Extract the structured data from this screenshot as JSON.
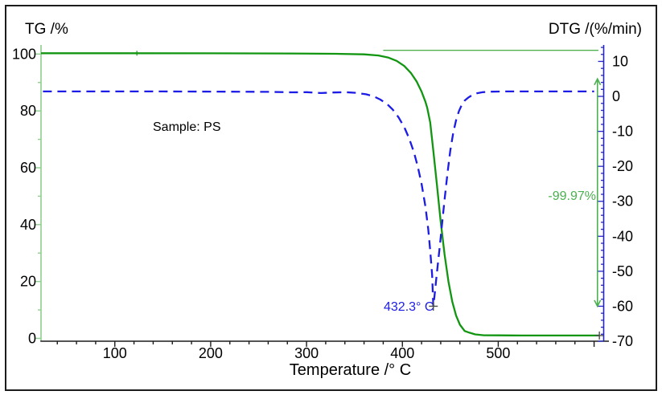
{
  "figure": {
    "tg_axis_title": "TG /%",
    "dtg_axis_title": "DTG /(%/min)",
    "x_axis_title": "Temperature /° C",
    "sample_label": "Sample: PS",
    "peak_temperature_label": "432.3° C",
    "mass_loss_label": "-99.97%"
  },
  "colors": {
    "tg_curve": "#129612",
    "tg_axis": "#8fcf8f",
    "dtg_curve": "#1c1ce6",
    "dtg_axis": "#2424cc",
    "x_axis": "#1c1c1c",
    "tick_label": "#000000",
    "arrow": "#4ab050",
    "marker": "#4d4d4d",
    "start_marker": "#129612",
    "baseline": "#129612"
  },
  "chart_data": {
    "type": "line",
    "title": "",
    "xlabel": "Temperature /° C",
    "grid": false,
    "legend": "none",
    "x_axis": {
      "range": [
        23,
        610
      ],
      "major_ticks": [
        100,
        200,
        300,
        400,
        500
      ],
      "minor_step": 20
    },
    "left_axis": {
      "label": "TG /%",
      "range": [
        -1,
        103.2
      ],
      "major_ticks": [
        0,
        20,
        40,
        60,
        80,
        100
      ],
      "minor_step": 10
    },
    "right_axis": {
      "label": "DTG /(%/min)",
      "range": [
        -70,
        14.7
      ],
      "major_ticks": [
        10,
        0,
        -10,
        -20,
        -30,
        -40,
        -50,
        -60,
        -70
      ],
      "minor_step": 2
    },
    "series": [
      {
        "name": "TG",
        "axis": "left",
        "style": "solid",
        "points": [
          [
            23,
            100.3
          ],
          [
            100,
            100.3
          ],
          [
            200,
            100.25
          ],
          [
            280,
            100.2
          ],
          [
            330,
            100.1
          ],
          [
            360,
            99.9
          ],
          [
            375,
            99.5
          ],
          [
            385,
            98.8
          ],
          [
            394,
            97.6
          ],
          [
            402,
            95.8
          ],
          [
            409,
            93.3
          ],
          [
            415,
            90.3
          ],
          [
            420,
            86.8
          ],
          [
            424,
            83.2
          ],
          [
            426,
            81.0
          ],
          [
            429,
            76.0
          ],
          [
            432.3,
            66.0
          ],
          [
            436,
            54.0
          ],
          [
            440,
            41.0
          ],
          [
            444,
            29.5
          ],
          [
            448,
            20.0
          ],
          [
            452,
            13.0
          ],
          [
            456,
            8.0
          ],
          [
            460,
            4.8
          ],
          [
            465,
            2.6
          ],
          [
            470,
            2.0
          ],
          [
            476,
            1.4
          ],
          [
            485,
            1.1
          ],
          [
            500,
            1.05
          ],
          [
            525,
            1.0
          ],
          [
            560,
            1.0
          ],
          [
            606,
            1.0
          ]
        ]
      },
      {
        "name": "DTG",
        "axis": "right",
        "style": "dashed",
        "points": [
          [
            25,
            1.4
          ],
          [
            80,
            1.4
          ],
          [
            150,
            1.4
          ],
          [
            220,
            1.35
          ],
          [
            260,
            1.3
          ],
          [
            285,
            1.15
          ],
          [
            300,
            1.2
          ],
          [
            315,
            0.95
          ],
          [
            328,
            1.1
          ],
          [
            340,
            1.2
          ],
          [
            352,
            1.0
          ],
          [
            362,
            0.6
          ],
          [
            370,
            0.0
          ],
          [
            377,
            -0.9
          ],
          [
            384,
            -2.2
          ],
          [
            390,
            -3.8
          ],
          [
            396,
            -6.0
          ],
          [
            402,
            -8.8
          ],
          [
            407,
            -12.0
          ],
          [
            412,
            -16.0
          ],
          [
            416,
            -20.0
          ],
          [
            420,
            -25.0
          ],
          [
            424,
            -31.5
          ],
          [
            427,
            -38.0
          ],
          [
            429,
            -44.0
          ],
          [
            431,
            -51.0
          ],
          [
            432.3,
            -60.0
          ],
          [
            433.5,
            -57.0
          ],
          [
            435,
            -53.0
          ],
          [
            437,
            -48.0
          ],
          [
            439,
            -43.0
          ],
          [
            441,
            -37.5
          ],
          [
            444,
            -29.5
          ],
          [
            447,
            -22.0
          ],
          [
            450,
            -15.5
          ],
          [
            453,
            -10.5
          ],
          [
            456,
            -6.8
          ],
          [
            459,
            -4.2
          ],
          [
            462,
            -2.4
          ],
          [
            465,
            -1.2
          ],
          [
            469,
            -0.3
          ],
          [
            473,
            0.4
          ],
          [
            478,
            0.9
          ],
          [
            484,
            1.2
          ],
          [
            492,
            1.35
          ],
          [
            505,
            1.4
          ],
          [
            550,
            1.4
          ],
          [
            600,
            1.4
          ]
        ]
      }
    ],
    "baseline_extension": {
      "axis": "left",
      "value": 101.3,
      "from_temp": 380,
      "to_temp": 604.5
    },
    "annotations": {
      "sample": "Sample: PS",
      "peak": {
        "label": "432.3° C",
        "temp": 432.3,
        "dtg": -60
      },
      "mass_loss": {
        "label": "-99.97%",
        "arrow_temp": 603.5,
        "arrow_dtg_top": 5.0,
        "arrow_dtg_bottom": -60.0
      },
      "tg_end_marker": {
        "temp": 605.5,
        "tg": 1.0
      },
      "tg_start_marker": {
        "temp": 123,
        "tg": 100.3
      }
    }
  }
}
